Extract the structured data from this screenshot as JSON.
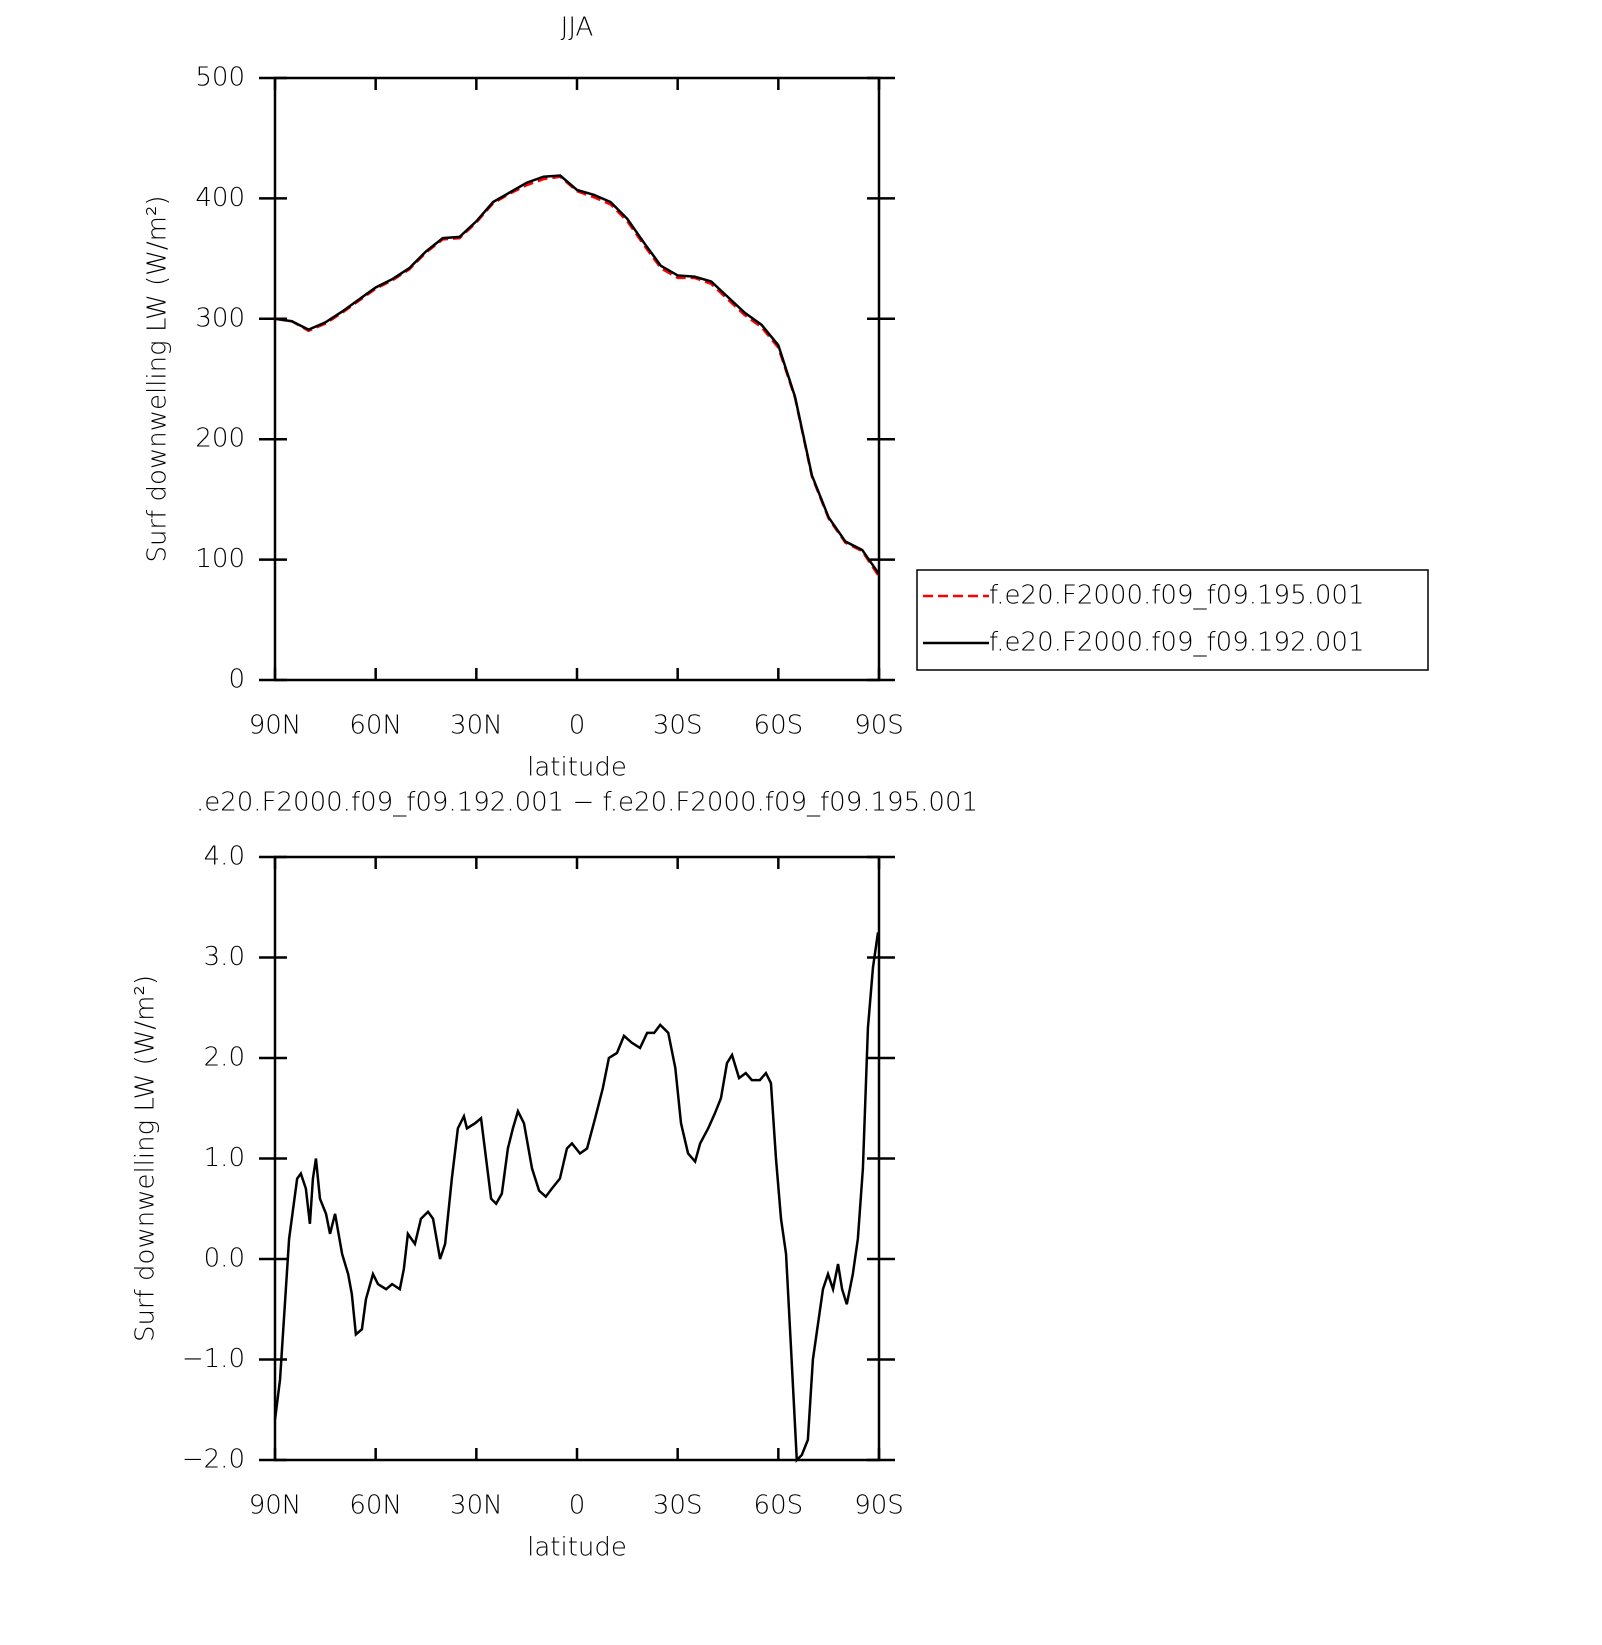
{
  "chart_data": [
    {
      "type": "line",
      "title": "JJA",
      "xlabel": "latitude",
      "ylabel": "Surf downwelling LW (W/m²)",
      "xlim": [
        90,
        -90
      ],
      "xticks": [
        {
          "value": 90,
          "label": "90N"
        },
        {
          "value": 60,
          "label": "60N"
        },
        {
          "value": 30,
          "label": "30N"
        },
        0,
        {
          "value": -30,
          "label": "30S"
        },
        {
          "value": -60,
          "label": "60S"
        },
        {
          "value": -90,
          "label": "90S"
        }
      ],
      "ylim": [
        0,
        500
      ],
      "yticks": [
        0,
        100,
        200,
        300,
        400,
        500
      ],
      "legend": "right",
      "x": [
        90,
        85,
        80,
        75,
        70,
        65,
        60,
        55,
        50,
        45,
        40,
        35,
        30,
        25,
        20,
        15,
        10,
        5,
        0,
        -5,
        -10,
        -15,
        -20,
        -25,
        -30,
        -35,
        -40,
        -45,
        -50,
        -55,
        -60,
        -65,
        -70,
        -75,
        -80,
        -85,
        -90
      ],
      "series": [
        {
          "name": "f.e20.F2000.f09_f09.195.001",
          "color": "#ff0000",
          "dashed": true,
          "values": [
            300,
            298,
            290,
            296,
            305,
            315,
            325,
            332,
            341,
            355,
            366,
            367,
            380,
            396,
            404,
            411,
            416,
            418,
            406,
            401,
            395,
            381,
            361,
            342,
            334,
            334,
            329,
            316,
            303,
            293,
            276,
            234,
            169,
            134,
            114,
            107,
            86
          ]
        },
        {
          "name": "f.e20.F2000.f09_f09.192.001",
          "color": "#000000",
          "dashed": false,
          "values": [
            300,
            298,
            291,
            297,
            306,
            316,
            326,
            333,
            342,
            356,
            367,
            368,
            381,
            397,
            405,
            413,
            418,
            419,
            407,
            403,
            397,
            383,
            363,
            344,
            336,
            335,
            331,
            318,
            305,
            295,
            278,
            235,
            170,
            135,
            115,
            108,
            88
          ]
        }
      ]
    },
    {
      "type": "line",
      "title": ".e20.F2000.f09_f09.192.001 − f.e20.F2000.f09_f09.195.001",
      "xlabel": "latitude",
      "ylabel": "Surf downwelling LW (W/m²)",
      "xlim": [
        90,
        -90
      ],
      "xticks": [
        {
          "value": 90,
          "label": "90N"
        },
        {
          "value": 60,
          "label": "60N"
        },
        {
          "value": 30,
          "label": "30N"
        },
        0,
        {
          "value": -30,
          "label": "30S"
        },
        {
          "value": -60,
          "label": "60S"
        },
        {
          "value": -90,
          "label": "90S"
        }
      ],
      "ylim": [
        -2,
        4
      ],
      "yticks": [
        {
          "value": -2,
          "label": "−2.0"
        },
        {
          "value": -1,
          "label": "−1.0"
        },
        {
          "value": 0,
          "label": "0.0"
        },
        {
          "value": 1,
          "label": "1.0"
        },
        {
          "value": 2,
          "label": "2.0"
        },
        {
          "value": 3,
          "label": "3.0"
        },
        {
          "value": 4,
          "label": "4.0"
        }
      ],
      "x": [
        90,
        88.5,
        85.8,
        84.6,
        83.4,
        82.3,
        80.8,
        79.6,
        78.7,
        77.8,
        76.6,
        74.8,
        73.6,
        72.1,
        70.0,
        68.2,
        67.1,
        65.9,
        64.1,
        62.9,
        60.8,
        59.3,
        56.9,
        55.1,
        52.8,
        51.6,
        50.4,
        48.3,
        46.5,
        44.4,
        42.9,
        40.8,
        39.3,
        37.3,
        35.5,
        33.7,
        32.8,
        30.4,
        28.6,
        27.1,
        25.6,
        24.1,
        22.4,
        20.6,
        19.1,
        17.6,
        15.8,
        13.4,
        11.3,
        9.3,
        7.5,
        5.1,
        3.0,
        1.5,
        -0.9,
        -3.0,
        -5.4,
        -7.7,
        -9.5,
        -11.9,
        -14.0,
        -16.4,
        -18.8,
        -20.9,
        -23.0,
        -24.8,
        -27.2,
        -29.3,
        -31.0,
        -33.1,
        -35.2,
        -36.7,
        -39.1,
        -41.1,
        -42.9,
        -44.7,
        -46.2,
        -48.3,
        -50.3,
        -52.1,
        -54.5,
        -56.3,
        -57.8,
        -59.3,
        -60.8,
        -62.3,
        -63.8,
        -65.5,
        -67.0,
        -68.8,
        -70.3,
        -71.8,
        -73.3,
        -74.8,
        -76.3,
        -77.8,
        -79.0,
        -80.4,
        -82.2,
        -83.7,
        -85.2,
        -86.7,
        -88.2,
        -89.7
      ],
      "series": [
        {
          "color": "#000000",
          "dashed": false,
          "values": [
            -1.6,
            -1.2,
            0.2,
            0.5,
            0.8,
            0.85,
            0.7,
            0.35,
            0.8,
            1.0,
            0.6,
            0.45,
            0.25,
            0.45,
            0.05,
            -0.15,
            -0.35,
            -0.75,
            -0.7,
            -0.4,
            -0.15,
            -0.25,
            -0.3,
            -0.25,
            -0.3,
            -0.1,
            0.25,
            0.15,
            0.4,
            0.47,
            0.4,
            0.0,
            0.15,
            0.8,
            1.3,
            1.42,
            1.3,
            1.35,
            1.4,
            1.0,
            0.6,
            0.55,
            0.65,
            1.1,
            1.3,
            1.47,
            1.35,
            0.9,
            0.68,
            0.62,
            0.7,
            0.8,
            1.1,
            1.15,
            1.05,
            1.1,
            1.4,
            1.7,
            2.0,
            2.05,
            2.22,
            2.15,
            2.1,
            2.25,
            2.25,
            2.33,
            2.25,
            1.9,
            1.35,
            1.05,
            0.97,
            1.15,
            1.3,
            1.45,
            1.6,
            1.95,
            2.03,
            1.8,
            1.85,
            1.78,
            1.78,
            1.85,
            1.75,
            1.0,
            0.4,
            0.05,
            -0.9,
            -2.0,
            -1.95,
            -1.8,
            -1.0,
            -0.65,
            -0.3,
            -0.15,
            -0.3,
            -0.05,
            -0.3,
            -0.45,
            -0.15,
            0.2,
            0.9,
            2.3,
            2.9,
            3.25
          ]
        }
      ]
    }
  ]
}
